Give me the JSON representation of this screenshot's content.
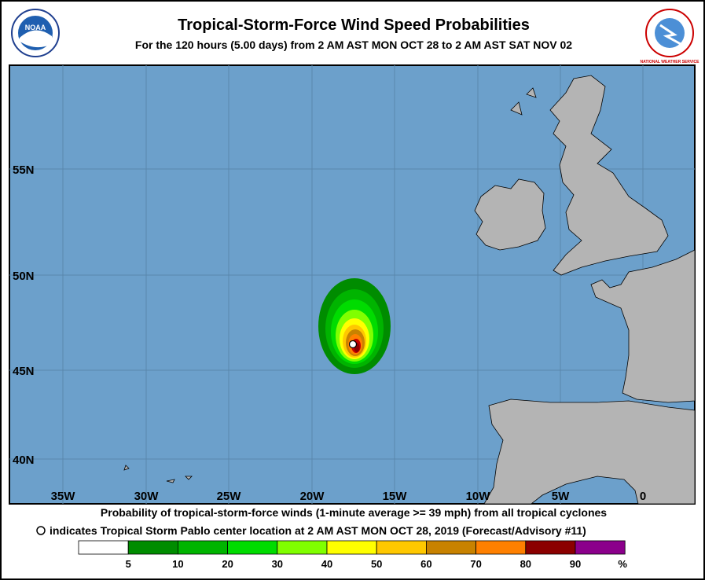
{
  "header": {
    "title": "Tropical-Storm-Force Wind Speed Probabilities",
    "subtitle": "For the 120 hours (5.00 days) from 2 AM AST MON OCT 28 to 2 AM AST SAT NOV 02",
    "left_logo": "NOAA",
    "right_logo": "NATIONAL WEATHER SERVICE"
  },
  "map": {
    "lat_labels": [
      "55N",
      "50N",
      "45N",
      "40N"
    ],
    "lon_labels": [
      "35W",
      "30W",
      "25W",
      "20W",
      "15W",
      "10W",
      "5W",
      "0"
    ]
  },
  "caption": {
    "line1": "Probability of tropical-storm-force winds (1-minute average >= 39 mph) from all tropical cyclones",
    "line2": "indicates Tropical Storm Pablo center location at 2 AM AST MON OCT 28, 2019 (Forecast/Advisory #11)"
  },
  "legend": {
    "colors": [
      "#ffffff",
      "#008c00",
      "#00b400",
      "#00dc00",
      "#80ff00",
      "#ffff00",
      "#ffc800",
      "#c88200",
      "#ff8000",
      "#c80000",
      "#8b0000",
      "#8b008b"
    ],
    "labels": [
      "5",
      "10",
      "20",
      "30",
      "40",
      "50",
      "60",
      "70",
      "80",
      "90",
      "%"
    ]
  }
}
